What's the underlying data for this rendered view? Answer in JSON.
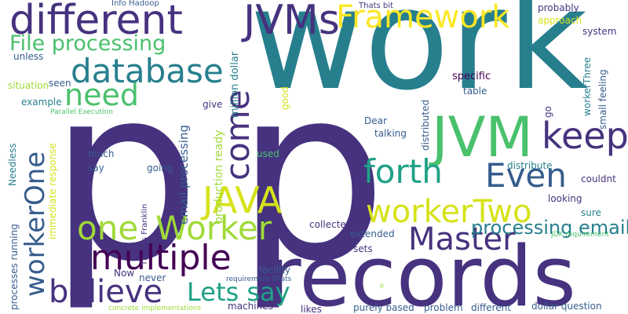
{
  "word_cloud": {
    "p_big_left": "p",
    "p_big_right": "p",
    "work": "work",
    "records": "records",
    "different_top": "different",
    "jvms": "JVMs",
    "framework": "Framework",
    "jvm": "JVM",
    "database": "database",
    "need": "need",
    "file_processing": "File processing",
    "keep": "keep",
    "forth": "forth",
    "even": "Even",
    "java": "JAVA",
    "worker_two": "workerTwo",
    "one": "one",
    "worker": "Worker",
    "master": "Master",
    "multiple": "multiple",
    "believe": "believe",
    "lets_say": "Lets say",
    "worker_one": "workerOne",
    "come": "come",
    "processing_email": "processing email",
    "email_processing": "email processing",
    "production_ready": "production ready",
    "million_dollar": "million dollar",
    "info_hadoop": "Info Hadoop",
    "thats_bit": "Thats bit",
    "probably": "probably",
    "approach": "approach",
    "system": "system",
    "small_feeling": "small feeling",
    "worker_three": "workerThree",
    "specific": "specific",
    "table": "table",
    "good": "good",
    "distributed": "distributed",
    "unless": "unless",
    "situation": "situation",
    "seen": "seen",
    "example": "example",
    "parallel_execution": "Parallel Execution",
    "give": "give",
    "go": "go",
    "dear": "Dear",
    "talking": "talking",
    "needless": "Needless",
    "immediate_response": "immediate response",
    "much": "much",
    "say": "say",
    "going": "going",
    "used": "used",
    "distribute": "distribute",
    "couldnt": "couldnt",
    "looking": "looking",
    "sure": "sure",
    "jdk_requirement": "JDK requirement",
    "thanks_franklin": "Thanks Franklin",
    "processes_running": "processes running",
    "collected": "collected",
    "extended": "extended",
    "sets": "sets",
    "now": "Now",
    "never": "never",
    "facility": "facility",
    "requirement_thats": "requirement Thats",
    "p_small": "p",
    "machines": "machines",
    "likes": "likes",
    "purely_based": "purely based",
    "problem": "problem",
    "different_bottom": "different",
    "dollar_question": "dollar question",
    "concrete_implementations": "concrete implementations"
  }
}
